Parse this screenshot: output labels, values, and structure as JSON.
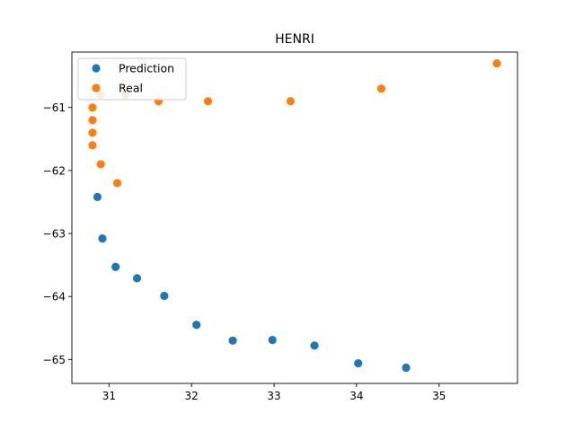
{
  "chart_data": {
    "type": "scatter",
    "title": "HENRI",
    "xlabel": "",
    "ylabel": "",
    "xlim": [
      30.55,
      35.95
    ],
    "ylim": [
      -65.38,
      -60.12
    ],
    "xticks": [
      31,
      32,
      33,
      34,
      35
    ],
    "yticks": [
      -61,
      -62,
      -63,
      -64,
      -65
    ],
    "grid": false,
    "legend": {
      "position": "top-left"
    },
    "series": [
      {
        "name": "Prediction",
        "color": "#1f77b4",
        "x": [
          30.86,
          30.92,
          31.08,
          31.34,
          31.67,
          32.06,
          32.5,
          32.98,
          33.49,
          34.02,
          34.6
        ],
        "y": [
          -62.42,
          -63.08,
          -63.53,
          -63.71,
          -63.99,
          -64.45,
          -64.7,
          -64.69,
          -64.78,
          -65.06,
          -65.13
        ]
      },
      {
        "name": "Real",
        "color": "#ff7f0e",
        "x": [
          30.8,
          30.8,
          30.8,
          30.8,
          30.9,
          31.1,
          30.9,
          31.2,
          31.6,
          32.2,
          33.2,
          34.3,
          35.7
        ],
        "y": [
          -61.6,
          -61.4,
          -61.2,
          -61.0,
          -61.9,
          -62.2,
          -60.8,
          -60.8,
          -60.9,
          -60.9,
          -60.9,
          -60.7,
          -60.3
        ]
      }
    ]
  }
}
